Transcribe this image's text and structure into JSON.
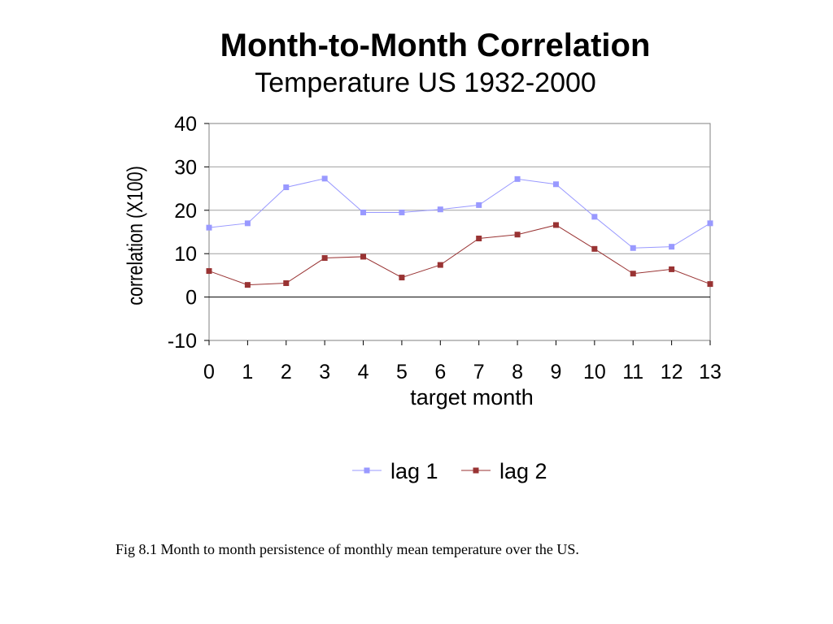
{
  "caption": "Fig 8.1 Month to month persistence of monthly mean temperature over the US.",
  "chart_data": {
    "type": "line",
    "title": "Month-to-Month Correlation",
    "subtitle": "Temperature US 1932-2000",
    "xlabel": "target month",
    "ylabel": "correlation (X100)",
    "x": [
      0,
      1,
      2,
      3,
      4,
      5,
      6,
      7,
      8,
      9,
      10,
      11,
      12,
      13
    ],
    "xlim": [
      0,
      13
    ],
    "ylim": [
      -10,
      40
    ],
    "yticks": [
      -10,
      0,
      10,
      20,
      30,
      40
    ],
    "grid": true,
    "legend_position": "bottom",
    "series": [
      {
        "name": "lag 1",
        "color": "#9999ff",
        "marker": "square",
        "values": [
          16,
          17,
          25.3,
          27.3,
          19.5,
          19.5,
          20.2,
          21.2,
          27.2,
          26,
          18.5,
          11.3,
          11.6,
          17
        ]
      },
      {
        "name": "lag 2",
        "color": "#993333",
        "marker": "square",
        "values": [
          6,
          2.8,
          3.2,
          9,
          9.3,
          4.5,
          7.4,
          13.5,
          14.4,
          16.6,
          11.1,
          5.4,
          6.4,
          3
        ]
      }
    ]
  }
}
